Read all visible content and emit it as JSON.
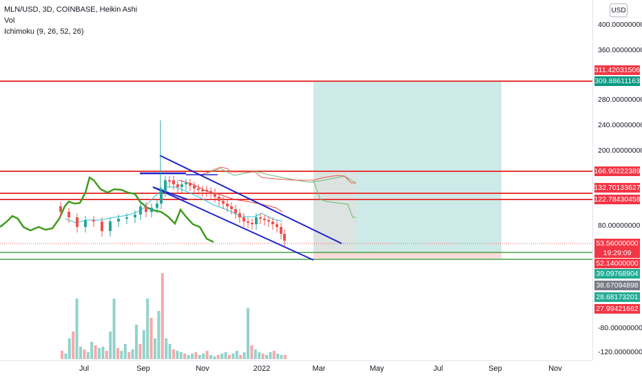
{
  "legend": {
    "symbol_line": "MLN/USD, 3D, COINBASE, Heikin Ashi",
    "volume_label": "Vol",
    "indicator_label": "Ichimoku (9, 26, 52, 26)"
  },
  "currency_button": "USD",
  "price_axis": {
    "ticks": [
      "400.00000000",
      "360.00000000",
      "280.00000000",
      "240.00000000",
      "200.00000000",
      "80.00000000",
      "-80.00000000",
      "-120.00000000"
    ]
  },
  "price_tags": [
    {
      "label": "311.42031506",
      "color": "#f23645"
    },
    {
      "label": "309.88611163",
      "color": "#089981"
    },
    {
      "label": "166.90222389",
      "color": "#f23645"
    },
    {
      "label": "132.70133627",
      "color": "#f23645"
    },
    {
      "label": "122.78430458",
      "color": "#f23645"
    },
    {
      "label": "53.56000000",
      "color": "#f23645"
    },
    {
      "label": "19:29:09",
      "color": "#f23645"
    },
    {
      "label": "52.14000000",
      "color": "#f23645"
    },
    {
      "label": "39.09768904",
      "color": "#22ab94"
    },
    {
      "label": "38.67094898",
      "color": "#787b86"
    },
    {
      "label": "28.68173201",
      "color": "#22ab94"
    },
    {
      "label": "27.99421662",
      "color": "#f23645"
    }
  ],
  "time_axis": {
    "labels": [
      "Jul",
      "Sep",
      "Nov",
      "2022",
      "Mar",
      "May",
      "Jul",
      "Sep",
      "Nov"
    ]
  },
  "colors": {
    "up": "#26a69a",
    "down": "#ef5350",
    "horizontal_line": "#e53935",
    "support_line": "#43a047",
    "channel": "#1e22c8",
    "ichimoku_lagging": "#3f9a1b",
    "target_zone": "#b2dfdb",
    "stop_zone": "#f8d7d5"
  }
}
